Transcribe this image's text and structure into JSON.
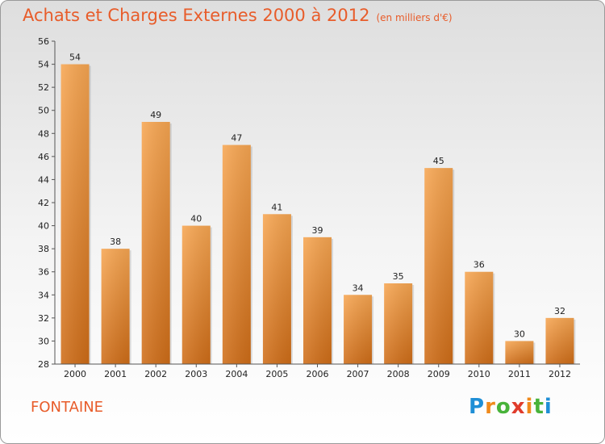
{
  "chart_data": {
    "type": "bar",
    "title": "Achats et Charges Externes 2000 à 2012",
    "subtitle": "(en milliers d'€)",
    "categories": [
      "2000",
      "2001",
      "2002",
      "2003",
      "2004",
      "2005",
      "2006",
      "2007",
      "2008",
      "2009",
      "2010",
      "2011",
      "2012"
    ],
    "values": [
      54,
      38,
      49,
      40,
      47,
      41,
      39,
      34,
      35,
      45,
      36,
      30,
      32
    ],
    "ylim": [
      28,
      56
    ],
    "yticks": [
      28,
      30,
      32,
      34,
      36,
      38,
      40,
      42,
      44,
      46,
      48,
      50,
      52,
      54,
      56
    ],
    "grid": false,
    "bar_color": "#f0a050",
    "accent_color": "#e85c2a"
  },
  "region": "FONTAINE",
  "logo": {
    "text": "Proxiti"
  }
}
